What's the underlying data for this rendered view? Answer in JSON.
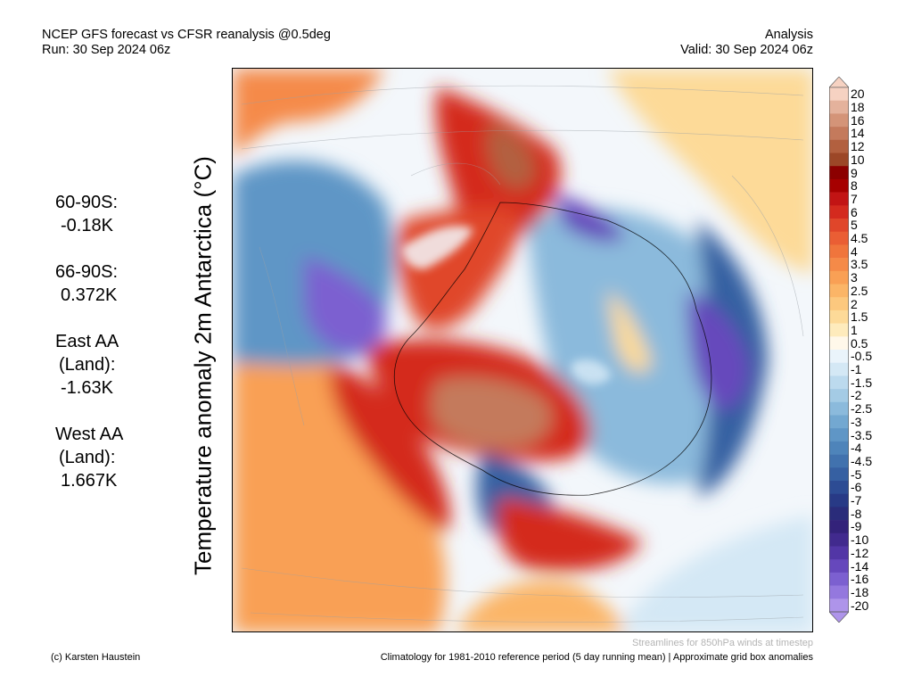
{
  "header": {
    "title_line1": "NCEP GFS forecast vs CFSR reanalysis @0.5deg",
    "title_line2": "Run: 30 Sep 2024 06z",
    "right_line1": "Analysis",
    "right_line2": "Valid: 30 Sep 2024 06z"
  },
  "stats": [
    {
      "label": "60-90S:",
      "value": "-0.18K"
    },
    {
      "label": "66-90S:",
      "value": "0.372K"
    },
    {
      "label": "East AA",
      "label2": "(Land):",
      "value": "-1.63K"
    },
    {
      "label": "West AA",
      "label2": "(Land):",
      "value": "1.667K"
    }
  ],
  "chart_data": {
    "type": "heatmap",
    "title": "NCEP GFS forecast vs CFSR reanalysis @0.5deg",
    "ylabel": "Temperature anomaly 2m Antarctica (°C)",
    "colorbar": {
      "levels": [
        "20",
        "18",
        "16",
        "14",
        "12",
        "10",
        "9",
        "8",
        "7",
        "6",
        "5",
        "4.5",
        "4",
        "3.5",
        "3",
        "2.5",
        "2",
        "1.5",
        "1",
        "0.5",
        "-0.5",
        "-1",
        "-1.5",
        "-2",
        "-2.5",
        "-3",
        "-3.5",
        "-4",
        "-4.5",
        "-5",
        "-6",
        "-7",
        "-8",
        "-9",
        "-10",
        "-12",
        "-14",
        "-16",
        "-18",
        "-20"
      ],
      "colors": [
        "#f6d2c2",
        "#e4b29c",
        "#d49478",
        "#c47a5c",
        "#b2603f",
        "#9c4727",
        "#8c0000",
        "#a60000",
        "#c21414",
        "#d42a1e",
        "#e0462a",
        "#ea5e34",
        "#f0753c",
        "#f58a48",
        "#f9a055",
        "#fbb567",
        "#fcc87e",
        "#fdda98",
        "#feebbc",
        "#fff8ea",
        "#eaf4fb",
        "#d4e8f5",
        "#bcdaee",
        "#a4cbe5",
        "#8bbadc",
        "#73a8d1",
        "#5f96c6",
        "#4e84ba",
        "#4172ae",
        "#3660a2",
        "#2d4c94",
        "#283a86",
        "#2a2c7a",
        "#33227a",
        "#412a8e",
        "#5236a6",
        "#6648bc",
        "#7c60d0",
        "#9478de",
        "#ae94ea"
      ]
    },
    "notes": [
      "Streamlines for 850hPa winds at timestep"
    ],
    "footer_left": "(c) Karsten Haustein",
    "footer_right": "Climatology for 1981-2010 reference period (5 day running mean) | Approximate grid box anomalies"
  }
}
